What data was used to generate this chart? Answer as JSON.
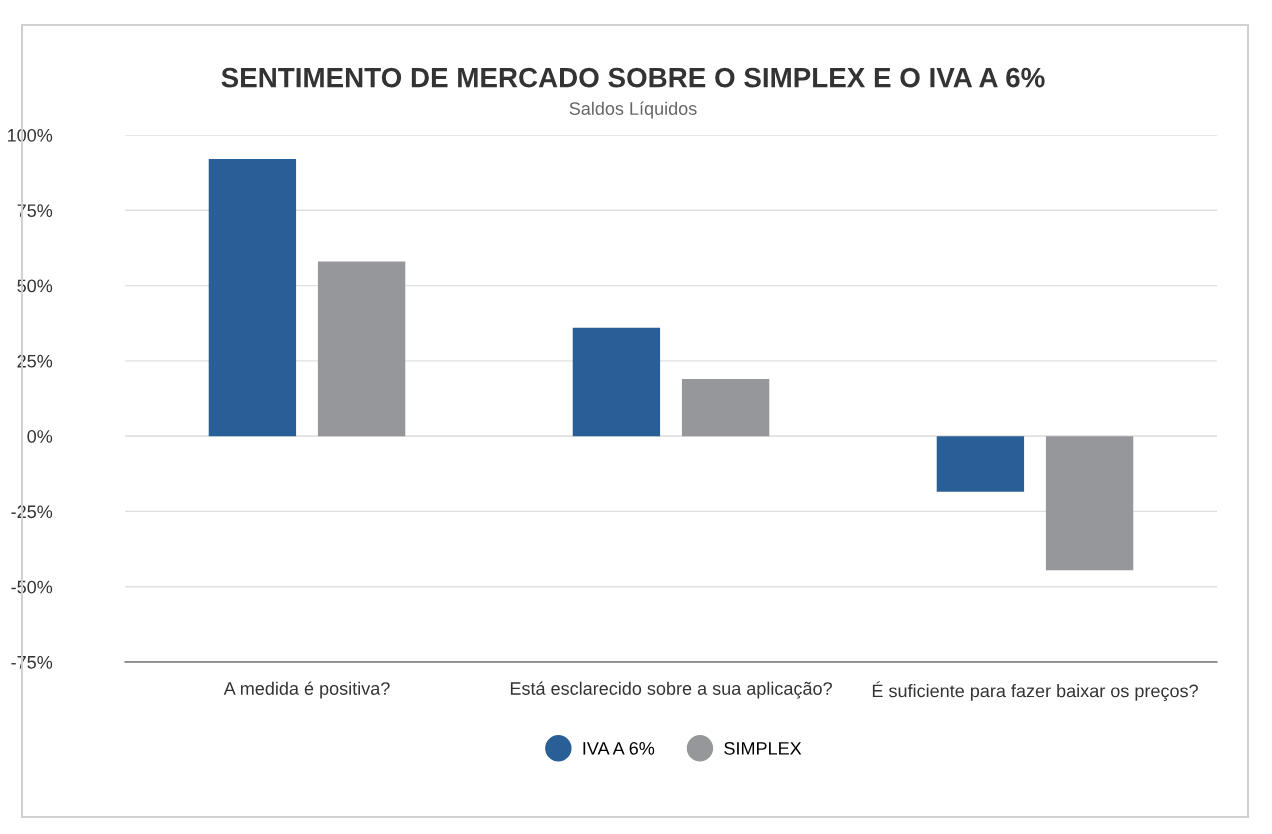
{
  "chart_data": {
    "type": "bar",
    "title": "SENTIMENTO DE MERCADO SOBRE O SIMPLEX E O IVA A 6%",
    "subtitle": "Saldos Líquidos",
    "categories": [
      "A medida é positiva?",
      "Está esclarecido sobre a sua aplicação?",
      "É suficiente para fazer baixar os preços?"
    ],
    "series": [
      {
        "name": "IVA A 6%",
        "color": "#285f96",
        "values": [
          92,
          36,
          -18.5
        ]
      },
      {
        "name": "SIMPLEX",
        "color": "#96979a",
        "values": [
          58,
          19,
          -44.5
        ]
      }
    ],
    "ylim": [
      -75,
      100
    ],
    "yticks": [
      {
        "value": -75,
        "label": "-75%"
      },
      {
        "value": -50,
        "label": "-50%"
      },
      {
        "value": -25,
        "label": "-25%"
      },
      {
        "value": 0,
        "label": "0%"
      },
      {
        "value": 25,
        "label": "25%"
      },
      {
        "value": 50,
        "label": "50%"
      },
      {
        "value": 75,
        "label": "75%"
      },
      {
        "value": 100,
        "label": "100%"
      }
    ],
    "grid": "y",
    "legend": "bottom"
  }
}
